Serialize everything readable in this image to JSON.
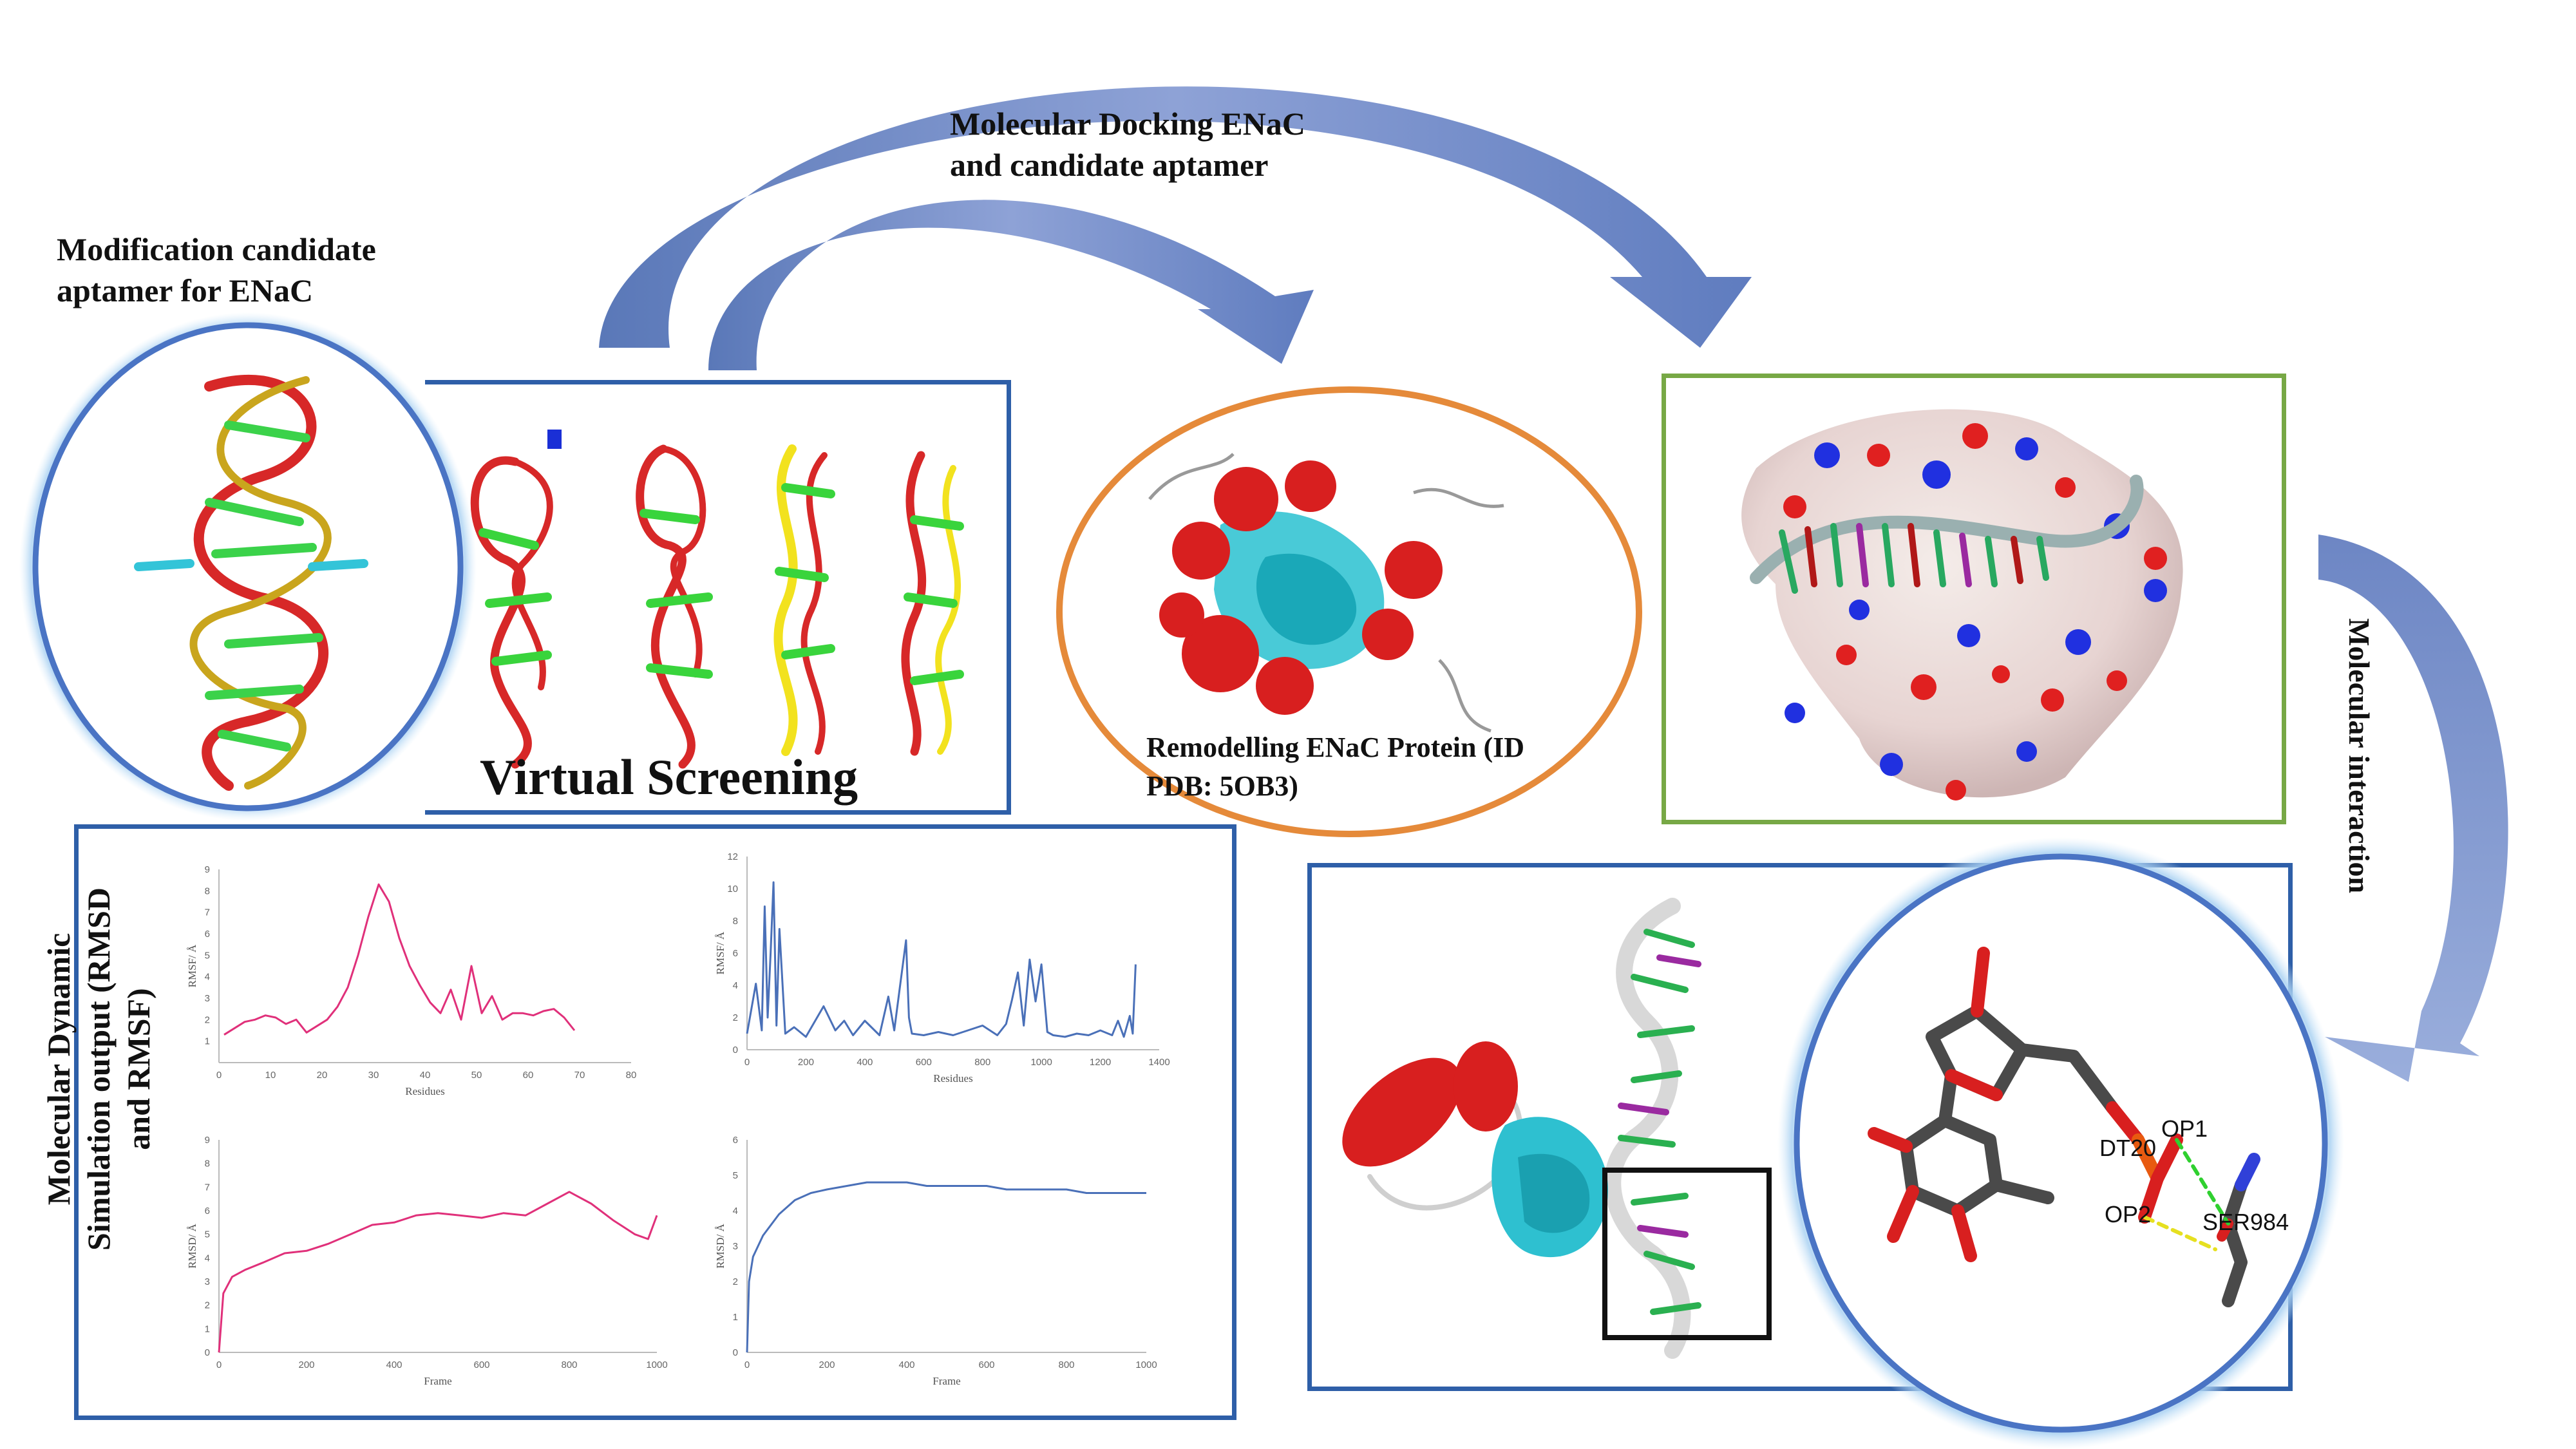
{
  "labels": {
    "docking_title_line1": "Molecular Docking ENaC",
    "docking_title_line2": "and candidate aptamer",
    "modification_line1": "Modification candidate",
    "modification_line2": "aptamer  for ENaC",
    "virtual_screening": "Virtual Screening",
    "remodelling_line1": "Remodelling  ENaC  Protein  (ID",
    "remodelling_line2": "PDB: 5OB3)",
    "molecular_interaction": "Molecular interaction",
    "md_line1": "Molecular Dynamic",
    "md_line2": "Simulation output (RMSD",
    "md_line3": "and RMSF)"
  },
  "atoms": {
    "op1": "OP1",
    "dt20": "DT20",
    "op2": "OP2",
    "ser984": "SER984"
  },
  "colors": {
    "blue_frame": "#2e5fa8",
    "orange_frame": "#e58a3a",
    "green_frame": "#77a845",
    "arrow": "#7f96cc",
    "pink_series": "#e0307a",
    "blue_series": "#4a70b8"
  },
  "chart_data": [
    {
      "type": "line",
      "xlabel": "Residues",
      "ylabel": "RMSF/ Å",
      "xlim": [
        0,
        80
      ],
      "ylim": [
        0,
        9
      ],
      "xticks": [
        0,
        10,
        20,
        30,
        40,
        50,
        60,
        70,
        80
      ],
      "yticks": [
        1,
        2,
        3,
        4,
        5,
        6,
        7,
        8,
        9
      ],
      "series": [
        {
          "color": "#e0307a",
          "x": [
            1,
            3,
            5,
            7,
            9,
            11,
            13,
            15,
            17,
            19,
            21,
            23,
            25,
            27,
            29,
            31,
            33,
            35,
            37,
            39,
            41,
            43,
            45,
            47,
            49,
            51,
            53,
            55,
            57,
            59,
            61,
            63,
            65,
            67,
            69
          ],
          "y": [
            1.3,
            1.6,
            1.9,
            2.0,
            2.2,
            2.1,
            1.8,
            2.0,
            1.4,
            1.7,
            2.0,
            2.6,
            3.5,
            5.0,
            6.8,
            8.3,
            7.5,
            5.8,
            4.5,
            3.6,
            2.8,
            2.3,
            3.4,
            2.0,
            4.5,
            2.3,
            3.1,
            2.0,
            2.3,
            2.3,
            2.2,
            2.4,
            2.5,
            2.1,
            1.5
          ]
        }
      ]
    },
    {
      "type": "line",
      "xlabel": "Residues",
      "ylabel": "RMSF/ Å",
      "xlim": [
        0,
        1400
      ],
      "ylim": [
        0,
        12
      ],
      "xticks": [
        0,
        200,
        400,
        600,
        800,
        1000,
        1200,
        1400
      ],
      "yticks": [
        0,
        2,
        4,
        6,
        8,
        10,
        12
      ],
      "series": [
        {
          "color": "#4a70b8",
          "x": [
            0,
            30,
            50,
            60,
            70,
            80,
            90,
            100,
            110,
            130,
            160,
            200,
            260,
            300,
            330,
            360,
            400,
            450,
            480,
            500,
            520,
            540,
            550,
            560,
            600,
            650,
            700,
            750,
            800,
            850,
            880,
            900,
            920,
            940,
            960,
            980,
            1000,
            1020,
            1040,
            1080,
            1120,
            1160,
            1200,
            1240,
            1260,
            1280,
            1300,
            1310,
            1320
          ],
          "y": [
            1.0,
            4.1,
            1.2,
            8.9,
            2.0,
            6.0,
            10.4,
            1.5,
            7.5,
            1.0,
            1.4,
            0.8,
            2.7,
            1.2,
            1.8,
            0.9,
            1.8,
            0.9,
            3.3,
            1.2,
            4.0,
            6.8,
            2.0,
            1.0,
            0.9,
            1.1,
            0.9,
            1.2,
            1.5,
            0.9,
            1.6,
            3.1,
            4.8,
            1.5,
            5.6,
            3.0,
            5.3,
            1.1,
            0.9,
            0.8,
            1.0,
            0.9,
            1.2,
            0.9,
            1.8,
            0.8,
            2.1,
            1.0,
            5.3
          ]
        }
      ]
    },
    {
      "type": "line",
      "xlabel": "Frame",
      "ylabel": "RMSD/ Å",
      "xlim": [
        0,
        1000
      ],
      "ylim": [
        0,
        9
      ],
      "xticks": [
        0,
        200,
        400,
        600,
        800,
        1000
      ],
      "yticks": [
        0,
        1,
        2,
        3,
        4,
        5,
        6,
        7,
        8,
        9
      ],
      "series": [
        {
          "color": "#e0307a",
          "x": [
            0,
            10,
            30,
            60,
            100,
            150,
            200,
            250,
            300,
            350,
            400,
            450,
            500,
            550,
            600,
            650,
            700,
            750,
            800,
            850,
            900,
            950,
            980,
            1000
          ],
          "y": [
            0,
            2.5,
            3.2,
            3.5,
            3.8,
            4.2,
            4.3,
            4.6,
            5.0,
            5.4,
            5.5,
            5.8,
            5.9,
            5.8,
            5.7,
            5.9,
            5.8,
            6.3,
            6.8,
            6.3,
            5.6,
            5.0,
            4.8,
            5.8
          ]
        }
      ]
    },
    {
      "type": "line",
      "xlabel": "Frame",
      "ylabel": "RMSD/ Å",
      "xlim": [
        0,
        1000
      ],
      "ylim": [
        0,
        6
      ],
      "xticks": [
        0,
        200,
        400,
        600,
        800,
        1000
      ],
      "yticks": [
        0,
        1,
        2,
        3,
        4,
        5,
        6
      ],
      "series": [
        {
          "color": "#4a70b8",
          "x": [
            0,
            5,
            15,
            40,
            80,
            120,
            160,
            200,
            250,
            300,
            350,
            400,
            450,
            500,
            550,
            600,
            650,
            700,
            750,
            800,
            850,
            900,
            950,
            1000
          ],
          "y": [
            0,
            2.0,
            2.7,
            3.3,
            3.9,
            4.3,
            4.5,
            4.6,
            4.7,
            4.8,
            4.8,
            4.8,
            4.7,
            4.7,
            4.7,
            4.7,
            4.6,
            4.6,
            4.6,
            4.6,
            4.5,
            4.5,
            4.5,
            4.5
          ]
        }
      ]
    }
  ]
}
